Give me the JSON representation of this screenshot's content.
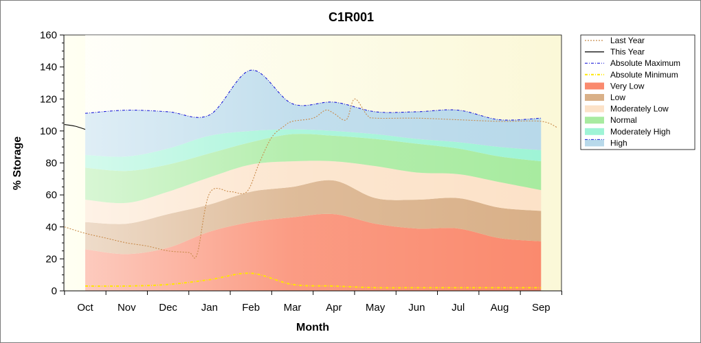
{
  "chart_data": {
    "type": "area",
    "title": "C1R001",
    "xlabel": "Month",
    "ylabel": "% Storage",
    "ylim": [
      0,
      160
    ],
    "yticks": [
      0,
      20,
      40,
      60,
      80,
      100,
      120,
      140,
      160
    ],
    "categories": [
      "Oct",
      "Nov",
      "Dec",
      "Jan",
      "Feb",
      "Mar",
      "Apr",
      "May",
      "Jun",
      "Jul",
      "Aug",
      "Sep"
    ],
    "legend_position": "right",
    "bands_x": [
      0,
      1,
      2,
      3,
      4,
      5,
      6,
      7,
      8,
      9,
      10,
      11
    ],
    "bands": [
      {
        "name": "Very Low",
        "color": "#fa8a6e",
        "upper": [
          26,
          23,
          27,
          37,
          43,
          46,
          48,
          42,
          39,
          39,
          33,
          31
        ]
      },
      {
        "name": "Low",
        "color": "#d9b088",
        "upper": [
          43,
          42,
          48,
          54,
          62,
          65,
          69,
          58,
          57,
          58,
          52,
          50
        ]
      },
      {
        "name": "Moderately Low",
        "color": "#fce2c8",
        "upper": [
          57,
          55,
          62,
          71,
          79,
          81,
          81,
          78,
          74,
          73,
          68,
          63
        ]
      },
      {
        "name": "Normal",
        "color": "#a8eba0",
        "upper": [
          77,
          75,
          79,
          86,
          93,
          98,
          97,
          95,
          92,
          89,
          84,
          81
        ]
      },
      {
        "name": "Moderately High",
        "color": "#9ff4d6",
        "upper": [
          85,
          84,
          89,
          97,
          100,
          101,
          100,
          98,
          95,
          93,
          90,
          88
        ]
      },
      {
        "name": "High",
        "color": "#b8d9ea",
        "upper": [
          111,
          113,
          112,
          110,
          138,
          117,
          118,
          112,
          112,
          113,
          107,
          108
        ]
      }
    ],
    "series": [
      {
        "name": "Last Year",
        "color": "#c88a4a",
        "style": "dotted",
        "x": [
          -0.5,
          0,
          0.5,
          1,
          1.5,
          2,
          2.5,
          2.7,
          3,
          3.5,
          3.9,
          4.2,
          4.5,
          4.8,
          5,
          5.5,
          5.8,
          6,
          6.3,
          6.5,
          6.8,
          7,
          8,
          9,
          10,
          11,
          11.4
        ],
        "values": [
          40,
          36,
          33,
          30,
          28,
          25,
          24,
          23,
          61,
          62,
          62,
          80,
          96,
          103,
          106,
          108,
          113,
          111,
          107,
          120,
          110,
          108,
          108,
          107,
          106,
          106,
          102
        ]
      },
      {
        "name": "This Year",
        "color": "#000000",
        "style": "solid",
        "x": [
          -0.5,
          -0.25,
          0
        ],
        "values": [
          104,
          103,
          101
        ]
      },
      {
        "name": "Absolute Maximum",
        "color": "#1a1ad8",
        "style": "dashdot",
        "x": [
          0,
          1,
          2,
          3,
          4,
          5,
          6,
          7,
          8,
          9,
          10,
          11
        ],
        "values": [
          111,
          113,
          112,
          110,
          138,
          117,
          118,
          112,
          112,
          113,
          107,
          108
        ]
      },
      {
        "name": "Absolute Minimum",
        "color": "#ffe600",
        "style": "dashdot",
        "x": [
          0,
          1,
          2,
          3,
          4,
          5,
          6,
          7,
          8,
          9,
          10,
          11
        ],
        "values": [
          3,
          3,
          4,
          7,
          11,
          4,
          3,
          2,
          2,
          2,
          2,
          2
        ]
      }
    ]
  }
}
